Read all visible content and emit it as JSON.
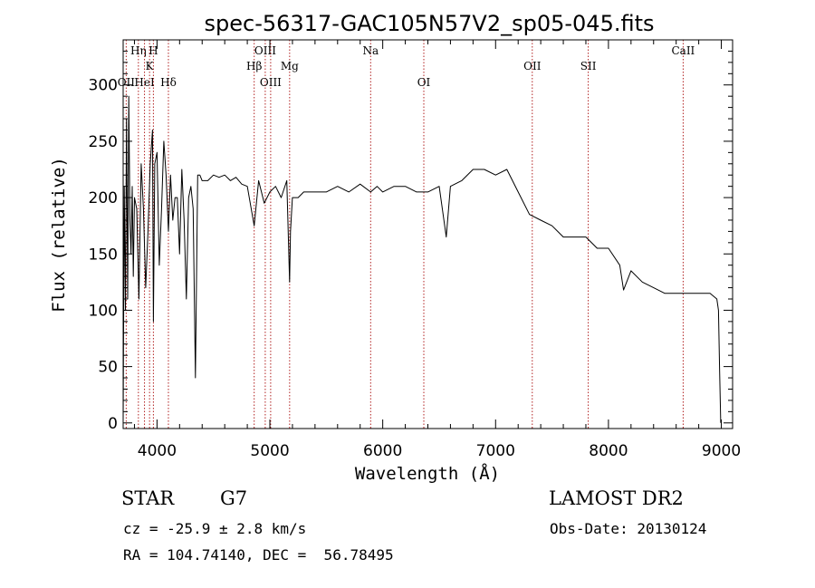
{
  "chart_data": {
    "type": "line",
    "title": "spec-56317-GAC105N57V2_sp05-045.fits",
    "xlabel": "Wavelength (Å)",
    "ylabel": "Flux (relative)",
    "xlim": [
      3700,
      9100
    ],
    "ylim": [
      -5,
      340
    ],
    "xticks": [
      4000,
      5000,
      6000,
      7000,
      8000,
      9000
    ],
    "yticks": [
      0,
      50,
      100,
      150,
      200,
      250,
      300
    ],
    "grid": false,
    "line_color": "#000000",
    "marker_color": "#b22222",
    "series": [
      {
        "x": [
          3700,
          3710,
          3720,
          3730,
          3740,
          3750,
          3760,
          3770,
          3780,
          3790,
          3800,
          3820,
          3840,
          3860,
          3880,
          3900,
          3920,
          3940,
          3960,
          3968,
          3980,
          4000,
          4020,
          4040,
          4060,
          4080,
          4101,
          4120,
          4140,
          4160,
          4180,
          4200,
          4220,
          4240,
          4260,
          4280,
          4300,
          4320,
          4340,
          4360,
          4380,
          4400,
          4450,
          4500,
          4550,
          4600,
          4650,
          4700,
          4750,
          4800,
          4861,
          4900,
          4950,
          5000,
          5050,
          5100,
          5150,
          5175,
          5183,
          5200,
          5250,
          5300,
          5400,
          5500,
          5600,
          5700,
          5800,
          5893,
          5950,
          6000,
          6100,
          6200,
          6300,
          6400,
          6500,
          6563,
          6600,
          6700,
          6800,
          6900,
          7000,
          7100,
          7200,
          7300,
          7400,
          7500,
          7600,
          7700,
          7800,
          7900,
          8000,
          8100,
          8134,
          8200,
          8300,
          8400,
          8500,
          8600,
          8700,
          8800,
          8900,
          8960,
          8975,
          8985,
          8995
        ],
        "y": [
          0,
          210,
          100,
          270,
          110,
          290,
          180,
          150,
          210,
          130,
          200,
          190,
          110,
          230,
          190,
          120,
          170,
          230,
          260,
          90,
          230,
          240,
          140,
          190,
          250,
          220,
          170,
          220,
          180,
          200,
          200,
          150,
          225,
          180,
          110,
          200,
          210,
          190,
          40,
          220,
          220,
          215,
          215,
          220,
          218,
          220,
          215,
          218,
          212,
          210,
          175,
          215,
          195,
          205,
          210,
          200,
          215,
          125,
          170,
          200,
          200,
          205,
          205,
          205,
          210,
          205,
          212,
          205,
          210,
          205,
          210,
          210,
          205,
          205,
          210,
          165,
          210,
          215,
          225,
          225,
          220,
          225,
          205,
          185,
          180,
          175,
          165,
          165,
          165,
          155,
          155,
          140,
          118,
          135,
          125,
          120,
          115,
          115,
          115,
          115,
          115,
          110,
          100,
          45,
          0
        ]
      }
    ],
    "line_markers": [
      {
        "label": "OII",
        "x": 3727,
        "row": 3
      },
      {
        "label": "Hη",
        "x": 3835,
        "row": 0
      },
      {
        "label": "HeI",
        "x": 3889,
        "row": 3
      },
      {
        "label": "K",
        "x": 3934,
        "row": 1
      },
      {
        "label": "H",
        "x": 3968,
        "row": 0
      },
      {
        "label": "Hδ",
        "x": 4101,
        "row": 3
      },
      {
        "label": "Hβ",
        "x": 4861,
        "row": 2
      },
      {
        "label": "OIII",
        "x": 4959,
        "row": 0
      },
      {
        "label": "OIII",
        "x": 5007,
        "row": 3
      },
      {
        "label": "Mg",
        "x": 5175,
        "row": 2
      },
      {
        "label": "Na",
        "x": 5893,
        "row": 0
      },
      {
        "label": "OI",
        "x": 6364,
        "row": 3
      },
      {
        "label": "OII",
        "x": 7325,
        "row": 2
      },
      {
        "label": "SII",
        "x": 7821,
        "row": 2
      },
      {
        "label": "CaII",
        "x": 8662,
        "row": 0
      }
    ]
  },
  "info": {
    "object_class": "STAR",
    "subclass": "G7",
    "survey": "LAMOST DR2",
    "redshift_line": "cz = -25.9 ± 2.8 km/s",
    "obs_date_line": "Obs-Date: 20130124",
    "coords_line": "RA = 104.74140, DEC =  56.78495"
  }
}
